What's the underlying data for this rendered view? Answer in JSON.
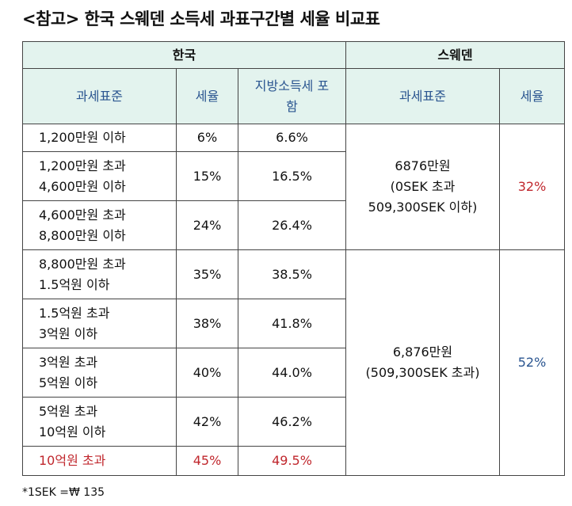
{
  "title": "<참고> 한국 스웨덴 소득세 과표구간별 세율 비교표",
  "colors": {
    "header_bg": "#e3f3ee",
    "header_text": "#2a5590",
    "highlight": "#c0272d"
  },
  "korea": {
    "label": "한국",
    "headers": {
      "bracket": "과세표준",
      "rate": "세율",
      "local": "지방소득세 포함"
    },
    "rows": [
      {
        "bracket": [
          "1,200만원 이하"
        ],
        "rate": "6%",
        "local": "6.6%"
      },
      {
        "bracket": [
          "1,200만원 초과",
          "4,600만원 이하"
        ],
        "rate": "15%",
        "local": "16.5%"
      },
      {
        "bracket": [
          "4,600만원 초과",
          "8,800만원 이하"
        ],
        "rate": "24%",
        "local": "26.4%"
      },
      {
        "bracket": [
          "8,800만원 초과",
          "1.5억원 이하"
        ],
        "rate": "35%",
        "local": "38.5%"
      },
      {
        "bracket": [
          "1.5억원 초과",
          "3억원 이하"
        ],
        "rate": "38%",
        "local": "41.8%"
      },
      {
        "bracket": [
          "3억원 초과",
          "5억원 이하"
        ],
        "rate": "40%",
        "local": "44.0%"
      },
      {
        "bracket": [
          "5억원 초과",
          "10억원 이하"
        ],
        "rate": "42%",
        "local": "46.2%"
      },
      {
        "bracket": [
          "10억원 초과"
        ],
        "rate": "45%",
        "local": "49.5%"
      }
    ]
  },
  "sweden": {
    "label": "스웨덴",
    "headers": {
      "bracket": "과세표준",
      "rate": "세율"
    },
    "rows": [
      {
        "bracket": [
          "6876만원",
          "(0SEK 초과",
          "509,300SEK 이하)"
        ],
        "rate": "32%"
      },
      {
        "bracket": [
          "6,876만원",
          "(509,300SEK 초과)"
        ],
        "rate": "52%"
      }
    ]
  },
  "footnote": "*1SEK =₩ 135"
}
